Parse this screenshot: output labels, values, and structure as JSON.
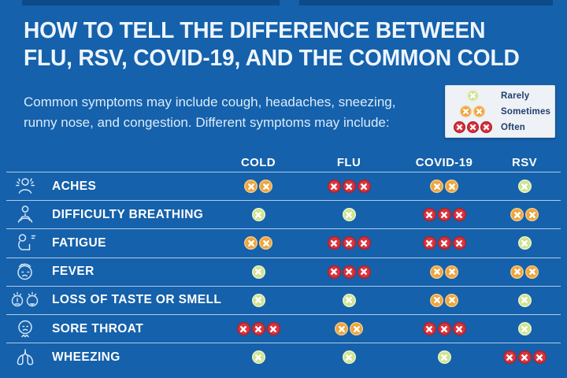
{
  "header": {
    "title_line1": "HOW TO TELL THE DIFFERENCE BETWEEN",
    "title_line2": "FLU, RSV, COVID-19, AND THE COMMON COLD",
    "subtitle_line1": "Common symptoms may include cough, headaches, sneezing,",
    "subtitle_line2": "runny nose, and congestion. Different symptoms may include:"
  },
  "legend": {
    "levels": [
      {
        "label": "Rarely",
        "count": 1,
        "color": "#cfe391"
      },
      {
        "label": "Sometimes",
        "count": 2,
        "color": "#eda53d"
      },
      {
        "label": "Often",
        "count": 3,
        "color": "#d9353e"
      }
    ]
  },
  "table": {
    "columns": [
      "COLD",
      "FLU",
      "COVID-19",
      "RSV"
    ],
    "rows": [
      {
        "symptom": "ACHES",
        "icon": "aches-icon",
        "frequencies": [
          "Sometimes",
          "Often",
          "Sometimes",
          "Rarely"
        ]
      },
      {
        "symptom": "DIFFICULTY BREATHING",
        "icon": "difficulty-breathing-icon",
        "frequencies": [
          "Rarely",
          "Rarely",
          "Often",
          "Sometimes"
        ]
      },
      {
        "symptom": "FATIGUE",
        "icon": "fatigue-icon",
        "frequencies": [
          "Sometimes",
          "Often",
          "Often",
          "Rarely"
        ]
      },
      {
        "symptom": "FEVER",
        "icon": "fever-icon",
        "frequencies": [
          "Rarely",
          "Often",
          "Sometimes",
          "Sometimes"
        ]
      },
      {
        "symptom": "LOSS OF TASTE OR SMELL",
        "icon": "loss-of-taste-or-smell-icon",
        "frequencies": [
          "Rarely",
          "Rarely",
          "Sometimes",
          "Rarely"
        ]
      },
      {
        "symptom": "SORE THROAT",
        "icon": "sore-throat-icon",
        "frequencies": [
          "Often",
          "Sometimes",
          "Often",
          "Rarely"
        ]
      },
      {
        "symptom": "WHEEZING",
        "icon": "wheezing-icon",
        "frequencies": [
          "Rarely",
          "Rarely",
          "Rarely",
          "Often"
        ]
      }
    ]
  },
  "colors": {
    "background": "#1561ab",
    "top_bar": "#0c4b88",
    "rarely": "#cfe391",
    "sometimes": "#eda53d",
    "often": "#d9353e",
    "divider": "#cbdff3",
    "legend_bg": "#eef1f6",
    "legend_text": "#20406f"
  },
  "chart_data": {
    "type": "table",
    "title": "HOW TO TELL THE DIFFERENCE BETWEEN FLU, RSV, COVID-19, AND THE COMMON COLD",
    "subtitle": "Common symptoms may include cough, headaches, sneezing, runny nose, and congestion. Different symptoms may include:",
    "columns": [
      "COLD",
      "FLU",
      "COVID-19",
      "RSV"
    ],
    "rows": [
      "ACHES",
      "DIFFICULTY BREATHING",
      "FATIGUE",
      "FEVER",
      "LOSS OF TASTE OR SMELL",
      "SORE THROAT",
      "WHEEZING"
    ],
    "values": [
      [
        "Sometimes",
        "Often",
        "Sometimes",
        "Rarely"
      ],
      [
        "Rarely",
        "Rarely",
        "Often",
        "Sometimes"
      ],
      [
        "Sometimes",
        "Often",
        "Often",
        "Rarely"
      ],
      [
        "Rarely",
        "Often",
        "Sometimes",
        "Sometimes"
      ],
      [
        "Rarely",
        "Rarely",
        "Sometimes",
        "Rarely"
      ],
      [
        "Often",
        "Sometimes",
        "Often",
        "Rarely"
      ],
      [
        "Rarely",
        "Rarely",
        "Rarely",
        "Often"
      ]
    ],
    "legend": {
      "Rarely": 1,
      "Sometimes": 2,
      "Often": 3
    },
    "legend_position": "top-right"
  }
}
